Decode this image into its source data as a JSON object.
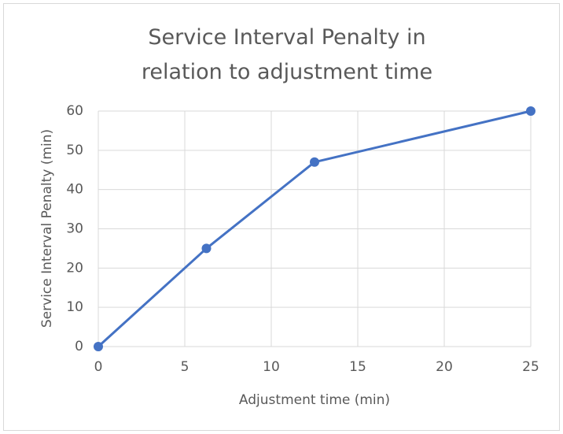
{
  "chart_data": {
    "type": "line",
    "title": "Service Interval Penalty in relation to adjustment time",
    "x_label": "Adjustment time (min)",
    "y_label": "Service Interval Penalty (min)",
    "x": [
      0,
      6.25,
      12.5,
      25
    ],
    "series": [
      {
        "color": "#4472c4",
        "values": [
          0,
          25,
          47,
          60
        ]
      }
    ],
    "xlim": [
      0,
      25
    ],
    "xticks": [
      0,
      5,
      10,
      15,
      20,
      25
    ],
    "ylim": [
      0,
      60
    ],
    "yticks": [
      0,
      10,
      20,
      30,
      40,
      50,
      60
    ],
    "grid": true
  }
}
